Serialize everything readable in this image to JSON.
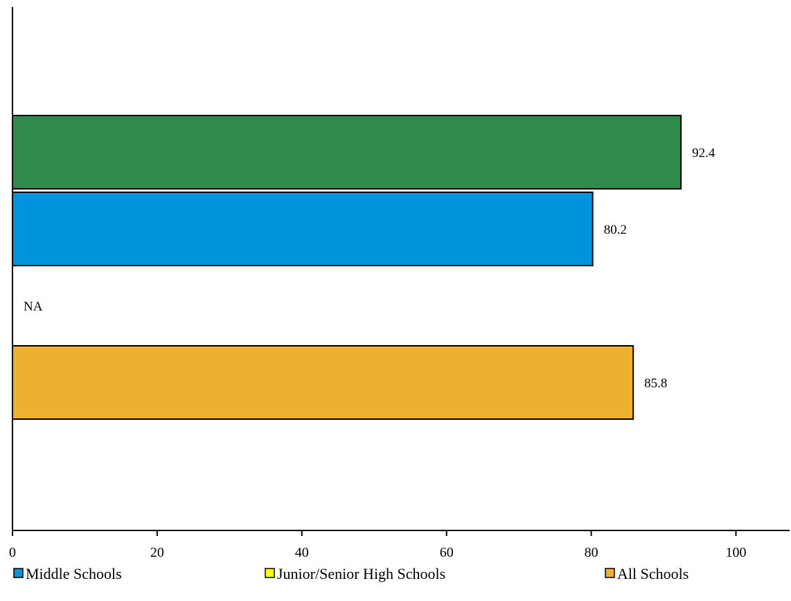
{
  "chart_data": {
    "type": "bar",
    "orientation": "horizontal",
    "title": "",
    "xlabel": "",
    "ylabel": "",
    "xlim": [
      0,
      107
    ],
    "x_ticks": [
      0,
      20,
      40,
      60,
      80,
      100
    ],
    "grid": false,
    "legend_placement": "bottom",
    "bars": [
      {
        "value": 92.4,
        "label": "92.4",
        "color": "#2e8b4b"
      },
      {
        "value": 80.2,
        "label": "80.2",
        "color": "#0094dc"
      },
      {
        "value": null,
        "label": "NA",
        "color": "#ffff00"
      },
      {
        "value": 85.8,
        "label": "85.8",
        "color": "#edb02f"
      }
    ],
    "legend": [
      {
        "name": "Middle Schools",
        "color": "#0094dc"
      },
      {
        "name": "Junior/Senior High Schools",
        "color": "#ffff00"
      },
      {
        "name": "All Schools",
        "color": "#edb02f"
      }
    ]
  }
}
